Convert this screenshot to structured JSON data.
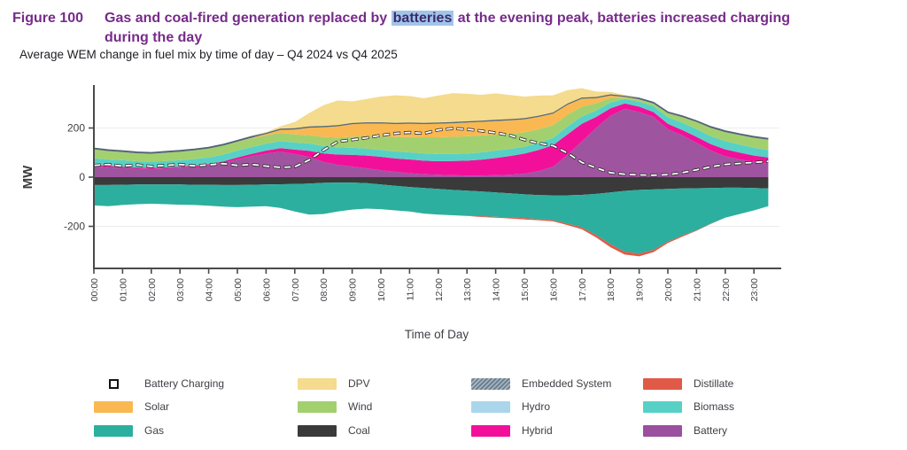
{
  "figure": {
    "label": "Figure 100",
    "title_pre": "Gas and coal-fired generation replaced by ",
    "title_highlight": "batteries",
    "title_post": " at the evening peak, batteries increased charging",
    "title_line2": "during the day",
    "subtitle": "Average WEM change in fuel mix by time of day – Q4 2024 vs Q4 2025"
  },
  "chart_data": {
    "type": "area",
    "stacked": true,
    "title": "Average WEM change in fuel mix by time of day – Q4 2024 vs Q4 2025",
    "xlabel": "Time of Day",
    "ylabel": "MW",
    "yticks": [
      200,
      0,
      -200
    ],
    "ylim": [
      -370,
      370
    ],
    "grid": "horizontal-faint",
    "legend_position": "bottom",
    "x_hours": [
      0,
      0.5,
      1,
      1.5,
      2,
      2.5,
      3,
      3.5,
      4,
      4.5,
      5,
      5.5,
      6,
      6.5,
      7,
      7.5,
      8,
      8.5,
      9,
      9.5,
      10,
      10.5,
      11,
      11.5,
      12,
      12.5,
      13,
      13.5,
      14,
      14.5,
      15,
      15.5,
      16,
      16.5,
      17,
      17.5,
      18,
      18.5,
      19,
      19.5,
      20,
      20.5,
      21,
      21.5,
      22,
      22.5,
      23,
      23.5
    ],
    "x_tick_labels": [
      "00:00",
      "01:00",
      "02:00",
      "03:00",
      "04:00",
      "05:00",
      "06:00",
      "07:00",
      "08:00",
      "09:00",
      "10:00",
      "11:00",
      "12:00",
      "13:00",
      "14:00",
      "15:00",
      "16:00",
      "17:00",
      "18:00",
      "19:00",
      "20:00",
      "21:00",
      "22:00",
      "23:00"
    ],
    "stack_pos": [
      "battery",
      "hybrid",
      "biomass",
      "wind",
      "solar",
      "embedded",
      "dpv"
    ],
    "stack_neg": [
      "coal",
      "gas",
      "distillate"
    ],
    "series": [
      {
        "id": "battery",
        "name": "Battery",
        "color": "#9f54a0",
        "values": [
          45,
          40,
          38,
          36,
          34,
          36,
          39,
          42,
          48,
          58,
          72,
          85,
          96,
          103,
          94,
          82,
          62,
          50,
          43,
          36,
          28,
          22,
          16,
          12,
          10,
          8,
          7,
          7,
          8,
          10,
          14,
          25,
          42,
          90,
          145,
          200,
          250,
          278,
          265,
          245,
          195,
          170,
          140,
          108,
          85,
          72,
          62,
          55
        ]
      },
      {
        "id": "hybrid",
        "name": "Hybrid",
        "color": "#f2109b",
        "values": [
          6,
          5,
          5,
          4,
          4,
          4,
          4,
          5,
          5,
          6,
          8,
          10,
          12,
          15,
          18,
          25,
          35,
          42,
          48,
          52,
          55,
          54,
          56,
          55,
          55,
          58,
          60,
          64,
          70,
          76,
          82,
          86,
          88,
          84,
          72,
          45,
          30,
          22,
          22,
          20,
          22,
          22,
          24,
          26,
          28,
          28,
          26,
          25
        ]
      },
      {
        "id": "biomass",
        "name": "Biomass",
        "color": "#57d1c6",
        "values": [
          26,
          27,
          26,
          25,
          25,
          26,
          26,
          27,
          27,
          28,
          28,
          28,
          28,
          29,
          29,
          30,
          30,
          29,
          29,
          28,
          28,
          29,
          29,
          30,
          29,
          28,
          29,
          30,
          30,
          29,
          28,
          29,
          30,
          32,
          30,
          26,
          24,
          18,
          20,
          24,
          27,
          30,
          32,
          33,
          34,
          33,
          32,
          30
        ]
      },
      {
        "id": "wind",
        "name": "Wind",
        "color": "#a3d06f",
        "values": [
          36,
          34,
          33,
          32,
          32,
          33,
          34,
          35,
          36,
          36,
          36,
          35,
          34,
          33,
          33,
          34,
          36,
          40,
          45,
          50,
          55,
          58,
          62,
          65,
          68,
          70,
          70,
          68,
          65,
          62,
          58,
          55,
          52,
          48,
          40,
          30,
          18,
          6,
          8,
          10,
          16,
          22,
          28,
          33,
          36,
          38,
          40,
          42
        ]
      },
      {
        "id": "solar",
        "name": "Solar",
        "color": "#f9b851",
        "values": [
          0,
          0,
          0,
          0,
          0,
          0,
          0,
          0,
          0,
          0,
          0,
          2,
          5,
          12,
          20,
          30,
          40,
          46,
          50,
          52,
          52,
          53,
          54,
          54,
          55,
          55,
          56,
          56,
          55,
          54,
          53,
          50,
          46,
          40,
          32,
          20,
          10,
          2,
          1,
          0,
          0,
          0,
          0,
          0,
          0,
          0,
          0,
          0
        ]
      },
      {
        "id": "embedded",
        "name": "Embedded System",
        "color": "#61747f",
        "values": [
          5,
          5,
          5,
          5,
          5,
          5,
          5,
          5,
          5,
          5,
          5,
          5,
          5,
          5,
          5,
          5,
          5,
          5,
          5,
          5,
          5,
          5,
          5,
          5,
          5,
          5,
          5,
          5,
          5,
          5,
          5,
          5,
          5,
          5,
          5,
          5,
          5,
          5,
          5,
          5,
          5,
          5,
          5,
          5,
          5,
          5,
          5,
          5
        ]
      },
      {
        "id": "dpv",
        "name": "DPV",
        "color": "#f4db8d",
        "values": [
          0,
          0,
          0,
          0,
          0,
          0,
          0,
          0,
          0,
          0,
          0,
          0,
          3,
          10,
          25,
          55,
          85,
          100,
          88,
          95,
          105,
          112,
          108,
          100,
          110,
          118,
          112,
          105,
          108,
          98,
          88,
          82,
          70,
          55,
          38,
          22,
          10,
          3,
          0,
          0,
          0,
          0,
          0,
          0,
          0,
          0,
          0,
          0
        ]
      },
      {
        "id": "hydro",
        "name": "Hydro",
        "color": "#a9d6ea",
        "values": [
          0,
          0,
          0,
          0,
          0,
          0,
          0,
          0,
          0,
          0,
          0,
          0,
          0,
          0,
          0,
          0,
          0,
          0,
          0,
          0,
          0,
          0,
          0,
          0,
          0,
          0,
          0,
          0,
          0,
          0,
          0,
          0,
          0,
          0,
          0,
          0,
          0,
          0,
          0,
          0,
          0,
          0,
          0,
          0,
          0,
          0,
          0,
          0
        ]
      },
      {
        "id": "coal",
        "name": "Coal",
        "color": "#3a3a3a",
        "values": [
          -32,
          -32,
          -31,
          -30,
          -30,
          -30,
          -30,
          -31,
          -31,
          -32,
          -32,
          -31,
          -30,
          -29,
          -28,
          -26,
          -23,
          -22,
          -22,
          -24,
          -30,
          -35,
          -40,
          -44,
          -48,
          -52,
          -55,
          -58,
          -62,
          -66,
          -70,
          -73,
          -74,
          -74,
          -72,
          -68,
          -62,
          -56,
          -52,
          -50,
          -48,
          -46,
          -45,
          -44,
          -43,
          -43,
          -44,
          -46
        ]
      },
      {
        "id": "gas",
        "name": "Gas",
        "color": "#2caf9e",
        "values": [
          -83,
          -86,
          -82,
          -80,
          -78,
          -80,
          -82,
          -82,
          -85,
          -88,
          -90,
          -89,
          -88,
          -96,
          -112,
          -126,
          -127,
          -118,
          -110,
          -104,
          -100,
          -100,
          -100,
          -104,
          -104,
          -103,
          -103,
          -101,
          -99,
          -98,
          -97,
          -97,
          -101,
          -115,
          -132,
          -167,
          -211,
          -247,
          -259,
          -246,
          -214,
          -192,
          -171,
          -145,
          -122,
          -107,
          -91,
          -72
        ]
      },
      {
        "id": "distillate",
        "name": "Distillate",
        "color": "#e05a47",
        "values": [
          0,
          0,
          0,
          0,
          0,
          0,
          0,
          0,
          0,
          0,
          0,
          0,
          0,
          0,
          0,
          0,
          0,
          0,
          0,
          0,
          0,
          0,
          0,
          0,
          0,
          0,
          0,
          -3,
          -4,
          -4,
          -5,
          -5,
          -5,
          -6,
          -8,
          -10,
          -12,
          -12,
          -11,
          -9,
          -6,
          -4,
          -2,
          -1,
          0,
          0,
          0,
          0
        ]
      }
    ],
    "line": {
      "id": "battery_charging",
      "name": "Battery Charging",
      "style": "white-dashed-black-outline",
      "values": [
        48,
        52,
        45,
        50,
        44,
        48,
        52,
        46,
        50,
        55,
        48,
        52,
        45,
        40,
        42,
        70,
        110,
        145,
        152,
        160,
        170,
        178,
        182,
        178,
        192,
        198,
        195,
        188,
        180,
        170,
        152,
        138,
        128,
        98,
        60,
        38,
        18,
        12,
        9,
        8,
        10,
        18,
        30,
        42,
        52,
        56,
        60,
        64
      ]
    }
  },
  "legend": {
    "columns": [
      [
        {
          "label": "Battery Charging",
          "type": "marker",
          "color": "#ffffff"
        },
        {
          "label": "Solar",
          "type": "swatch",
          "color": "#f9b851"
        },
        {
          "label": "Gas",
          "type": "swatch",
          "color": "#2caf9e"
        }
      ],
      [
        {
          "label": "DPV",
          "type": "swatch",
          "color": "#f4db8d"
        },
        {
          "label": "Wind",
          "type": "swatch",
          "color": "#a3d06f"
        },
        {
          "label": "Coal",
          "type": "swatch",
          "color": "#3a3a3a"
        }
      ],
      [
        {
          "label": "Embedded System",
          "type": "swatch-hatched",
          "color": "#6b8091"
        },
        {
          "label": "Hydro",
          "type": "swatch",
          "color": "#a9d6ea"
        },
        {
          "label": "Hybrid",
          "type": "swatch",
          "color": "#f2109b"
        }
      ],
      [
        {
          "label": "Distillate",
          "type": "swatch",
          "color": "#e05a47"
        },
        {
          "label": "Biomass",
          "type": "swatch",
          "color": "#57d1c6"
        },
        {
          "label": "Battery",
          "type": "swatch",
          "color": "#9b4f9f"
        }
      ]
    ]
  }
}
